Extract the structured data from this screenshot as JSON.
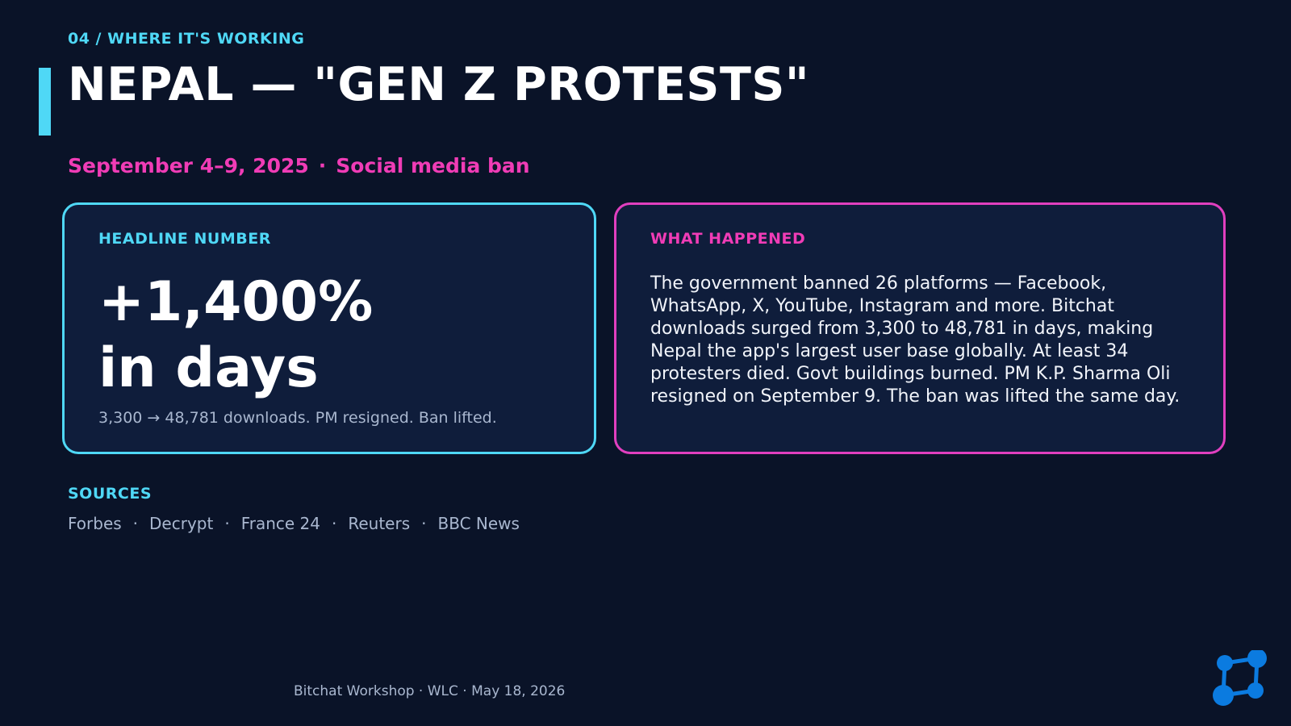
{
  "section_label": "04 / WHERE IT'S WORKING",
  "title": "NEPAL — \"GEN Z PROTESTS\"",
  "subtitle": {
    "date": "September 4–9, 2025",
    "separator": "·",
    "topic": "Social media ban"
  },
  "headline_card": {
    "label": "HEADLINE NUMBER",
    "number_line1": "+1,400%",
    "number_line2": "in days",
    "caption": "3,300 → 48,781 downloads. PM resigned. Ban lifted."
  },
  "what_happened_card": {
    "label": "WHAT HAPPENED",
    "body": "The government banned 26 platforms — Facebook, WhatsApp, X, YouTube, Instagram and more. Bitchat downloads surged from 3,300 to 48,781 in days, making Nepal the app's largest user base globally. At least 34 protesters died. Govt buildings burned. PM K.P. Sharma Oli resigned on September 9. The ban was lifted the same day."
  },
  "sources": {
    "label": "SOURCES",
    "separator": "·",
    "items": [
      "Forbes",
      "Decrypt",
      "France 24",
      "Reuters",
      "BBC News"
    ]
  },
  "footer": "Bitchat Workshop · WLC · May 18, 2026",
  "logo_icon": "network-nodes-icon",
  "colors": {
    "background": "#0a1328",
    "card_background": "#0f1d3b",
    "accent_cyan": "#4fd8f6",
    "accent_pink": "#f03cb6",
    "logo_blue": "#0b7be0"
  }
}
